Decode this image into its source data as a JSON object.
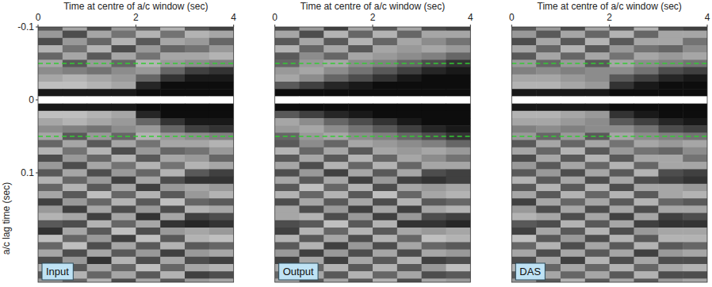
{
  "chart_data": [
    {
      "type": "heatmap",
      "title": "Input",
      "xlabel": "Time at centre of a/c window (sec)",
      "ylabel": "a/c lag time (sec)",
      "xlim": [
        0,
        4
      ],
      "ylim": [
        -0.1,
        0.25
      ],
      "xticks": [
        0,
        2,
        4
      ],
      "yticks": [
        -0.1,
        0,
        0.1
      ],
      "zlim": [
        -1,
        1
      ],
      "hlines": {
        "values": [
          -0.05,
          0.05
        ],
        "color": "#33cc33",
        "line_style": "dashed"
      },
      "x": [
        0.25,
        0.75,
        1.25,
        1.75,
        2.25,
        2.75,
        3.25,
        3.75
      ],
      "y": [
        -0.1,
        -0.09,
        -0.08,
        -0.07,
        -0.06,
        -0.05,
        -0.04,
        -0.03,
        -0.02,
        -0.01,
        0,
        0.01,
        0.02,
        0.03,
        0.04,
        0.05,
        0.06,
        0.07,
        0.08,
        0.09,
        0.1,
        0.11,
        0.12,
        0.13,
        0.14,
        0.15,
        0.16,
        0.17,
        0.18,
        0.19,
        0.2,
        0.21,
        0.22,
        0.23,
        0.24,
        0.25
      ],
      "z": [
        [
          -0.3,
          0.3,
          -0.4,
          0.2,
          -0.2,
          0.4,
          -0.3,
          -0.5
        ],
        [
          0.2,
          -0.4,
          0.3,
          -0.1,
          0.4,
          -0.1,
          0.4,
          0.3
        ],
        [
          -0.4,
          0.2,
          -0.2,
          0.4,
          -0.3,
          0.3,
          0.2,
          -0.2
        ],
        [
          0.4,
          -0.1,
          0.4,
          -0.4,
          0.2,
          -0.2,
          -0.1,
          0.2
        ],
        [
          -0.2,
          0.3,
          -0.3,
          0.3,
          -0.1,
          0.3,
          0.3,
          0.4
        ],
        [
          0.3,
          -0.3,
          0.2,
          -0.2,
          0.4,
          0.2,
          0.1,
          0.0
        ],
        [
          0.1,
          0.0,
          -0.1,
          0.1,
          0.2,
          -0.2,
          -0.5,
          -0.6
        ],
        [
          0.3,
          0.4,
          0.3,
          0.2,
          -0.2,
          -0.6,
          -0.8,
          -0.8
        ],
        [
          0.5,
          0.5,
          0.4,
          0.3,
          -0.7,
          -0.9,
          -0.9,
          -0.9
        ],
        [
          -0.8,
          -0.8,
          -0.8,
          -0.8,
          -0.9,
          -0.9,
          -0.9,
          -0.9
        ],
        [
          1,
          1,
          1,
          1,
          1,
          1,
          1,
          1
        ],
        [
          -0.8,
          -0.8,
          -0.8,
          -0.8,
          -0.9,
          -0.9,
          -0.9,
          -0.9
        ],
        [
          0.5,
          0.5,
          0.4,
          0.3,
          -0.7,
          -0.9,
          -0.9,
          -0.9
        ],
        [
          0.3,
          0.4,
          0.3,
          0.2,
          -0.2,
          -0.6,
          -0.8,
          -0.8
        ],
        [
          0.1,
          0.0,
          -0.1,
          0.1,
          0.2,
          -0.2,
          -0.5,
          -0.6
        ],
        [
          0.3,
          -0.3,
          0.2,
          -0.2,
          0.4,
          0.2,
          0.1,
          0.0
        ],
        [
          -0.2,
          0.3,
          -0.3,
          0.3,
          -0.1,
          0.3,
          0.3,
          0.4
        ],
        [
          0.4,
          -0.1,
          0.4,
          -0.4,
          0.2,
          -0.2,
          -0.1,
          0.2
        ],
        [
          -0.4,
          0.2,
          -0.2,
          0.4,
          -0.3,
          0.3,
          0.2,
          -0.2
        ],
        [
          0.2,
          -0.4,
          0.3,
          -0.1,
          0.4,
          -0.1,
          0.4,
          0.3
        ],
        [
          -0.3,
          0.3,
          -0.4,
          0.2,
          -0.2,
          0.4,
          -0.3,
          -0.5
        ],
        [
          0.4,
          -0.2,
          0.2,
          -0.5,
          0.3,
          -0.4,
          -0.6,
          -0.6
        ],
        [
          -0.2,
          0.4,
          -0.3,
          0.3,
          -0.5,
          0.2,
          0.3,
          0.2
        ],
        [
          0.3,
          -0.3,
          0.5,
          -0.2,
          0.4,
          -0.3,
          0.2,
          0.4
        ],
        [
          -0.5,
          0.2,
          -0.2,
          0.4,
          -0.3,
          0.5,
          -0.2,
          -0.3
        ],
        [
          0.2,
          -0.5,
          0.3,
          -0.4,
          0.2,
          -0.4,
          0.4,
          0.3
        ],
        [
          0.4,
          0.3,
          -0.5,
          0.3,
          -0.6,
          0.3,
          -0.5,
          -0.4
        ],
        [
          -0.3,
          -0.4,
          0.4,
          -0.2,
          0.3,
          -0.6,
          -0.7,
          -0.6
        ],
        [
          -0.6,
          0.3,
          -0.3,
          0.5,
          -0.4,
          0.2,
          0.3,
          0.2
        ],
        [
          0.5,
          -0.2,
          0.2,
          -0.5,
          0.5,
          -0.3,
          0.4,
          0.5
        ],
        [
          -0.2,
          0.5,
          -0.4,
          0.3,
          -0.3,
          0.4,
          -0.3,
          -0.2
        ],
        [
          0.3,
          -0.4,
          0.3,
          -0.3,
          0.2,
          -0.5,
          0.2,
          0.3
        ],
        [
          -0.4,
          0.2,
          -0.6,
          0.4,
          -0.4,
          0.3,
          -0.4,
          -0.5
        ],
        [
          0.4,
          -0.3,
          0.3,
          -0.2,
          0.5,
          -0.2,
          0.3,
          0.4
        ],
        [
          -0.3,
          0.4,
          -0.2,
          0.3,
          -0.3,
          0.4,
          -0.5,
          -0.4
        ],
        [
          0.2,
          -0.2,
          0.4,
          -0.4,
          0.3,
          -0.3,
          0.2,
          0.3
        ]
      ]
    },
    {
      "type": "heatmap",
      "title": "Output",
      "xlabel": "Time at centre of a/c window (sec)",
      "xlim": [
        0,
        4
      ],
      "ylim": [
        -0.1,
        0.25
      ],
      "xticks": [
        0,
        2,
        4
      ],
      "yticks": [
        -0.1,
        0,
        0.1
      ],
      "zlim": [
        -1,
        1
      ],
      "tick_labels": "x",
      "hlines": {
        "values": [
          -0.05,
          0.05
        ],
        "color": "#33cc33",
        "line_style": "dashed"
      },
      "x": [
        0.25,
        0.75,
        1.25,
        1.75,
        2.25,
        2.75,
        3.25,
        3.75
      ],
      "y": [
        -0.1,
        -0.09,
        -0.08,
        -0.07,
        -0.06,
        -0.05,
        -0.04,
        -0.03,
        -0.02,
        -0.01,
        0,
        0.01,
        0.02,
        0.03,
        0.04,
        0.05,
        0.06,
        0.07,
        0.08,
        0.09,
        0.1,
        0.11,
        0.12,
        0.13,
        0.14,
        0.15,
        0.16,
        0.17,
        0.18,
        0.19,
        0.2,
        0.21,
        0.22,
        0.23,
        0.24,
        0.25
      ],
      "z": [
        [
          -0.4,
          0.2,
          -0.5,
          0.3,
          -0.3,
          0.3,
          -0.4,
          -0.5
        ],
        [
          0.3,
          -0.4,
          0.4,
          -0.2,
          0.4,
          -0.2,
          0.3,
          0.3
        ],
        [
          -0.3,
          0.3,
          -0.3,
          0.4,
          -0.2,
          0.3,
          0.1,
          -0.1
        ],
        [
          0.4,
          -0.2,
          0.3,
          -0.3,
          0.3,
          0.2,
          0.3,
          0.2
        ],
        [
          -0.3,
          0.1,
          -0.2,
          0.3,
          0.2,
          0.1,
          0.0,
          -0.2
        ],
        [
          -0.2,
          0.2,
          0.3,
          0.1,
          0.0,
          -0.2,
          -0.4,
          -0.6
        ],
        [
          0.2,
          0.3,
          0.1,
          -0.1,
          -0.3,
          -0.5,
          -0.7,
          -0.8
        ],
        [
          0.3,
          0.1,
          -0.2,
          -0.4,
          -0.6,
          -0.8,
          -0.9,
          -0.9
        ],
        [
          -0.3,
          -0.5,
          -0.7,
          -0.8,
          -0.9,
          -0.9,
          -0.9,
          -0.9
        ],
        [
          -0.9,
          -0.9,
          -0.9,
          -0.9,
          -0.9,
          -0.9,
          -0.9,
          -0.9
        ],
        [
          1,
          1,
          1,
          1,
          1,
          1,
          1,
          1
        ],
        [
          -0.9,
          -0.9,
          -0.9,
          -0.9,
          -0.9,
          -0.9,
          -0.9,
          -0.9
        ],
        [
          -0.3,
          -0.5,
          -0.7,
          -0.8,
          -0.9,
          -0.9,
          -0.9,
          -0.9
        ],
        [
          0.3,
          0.1,
          -0.2,
          -0.4,
          -0.6,
          -0.8,
          -0.9,
          -0.9
        ],
        [
          0.2,
          0.3,
          0.1,
          -0.1,
          -0.3,
          -0.5,
          -0.7,
          -0.8
        ],
        [
          -0.2,
          0.2,
          0.3,
          0.1,
          0.0,
          -0.2,
          -0.4,
          -0.6
        ],
        [
          -0.3,
          0.1,
          -0.2,
          0.3,
          0.2,
          0.1,
          0.0,
          -0.2
        ],
        [
          0.4,
          -0.2,
          0.3,
          -0.3,
          0.3,
          0.2,
          0.3,
          0.2
        ],
        [
          -0.3,
          0.3,
          -0.3,
          0.4,
          -0.2,
          0.3,
          0.1,
          -0.1
        ],
        [
          0.3,
          -0.4,
          0.4,
          -0.2,
          0.4,
          -0.2,
          0.3,
          0.3
        ],
        [
          -0.4,
          0.2,
          -0.5,
          0.3,
          -0.3,
          0.3,
          -0.4,
          -0.5
        ],
        [
          0.3,
          -0.3,
          0.3,
          -0.5,
          0.2,
          -0.5,
          -0.6,
          -0.5
        ],
        [
          -0.3,
          0.5,
          -0.2,
          0.4,
          -0.4,
          0.3,
          0.2,
          0.3
        ],
        [
          0.4,
          -0.2,
          0.4,
          -0.3,
          0.5,
          -0.2,
          0.3,
          0.4
        ],
        [
          -0.4,
          0.3,
          -0.3,
          0.3,
          -0.4,
          0.4,
          -0.3,
          -0.2
        ],
        [
          0.3,
          -0.4,
          0.2,
          -0.5,
          0.3,
          -0.5,
          0.3,
          0.4
        ],
        [
          0.3,
          0.4,
          -0.4,
          0.2,
          -0.5,
          0.2,
          -0.4,
          -0.5
        ],
        [
          -0.4,
          -0.3,
          0.5,
          -0.3,
          0.4,
          -0.6,
          -0.6,
          -0.7
        ],
        [
          -0.5,
          0.4,
          -0.2,
          0.4,
          -0.3,
          0.3,
          0.2,
          0.3
        ],
        [
          0.4,
          -0.3,
          0.3,
          -0.4,
          0.4,
          -0.2,
          0.5,
          0.4
        ],
        [
          -0.3,
          0.4,
          -0.5,
          0.2,
          -0.4,
          0.3,
          -0.2,
          -0.3
        ],
        [
          0.2,
          -0.5,
          0.2,
          -0.4,
          0.3,
          -0.4,
          0.3,
          0.2
        ],
        [
          -0.5,
          0.3,
          -0.5,
          0.3,
          -0.3,
          0.4,
          -0.5,
          -0.4
        ],
        [
          0.3,
          -0.2,
          0.4,
          -0.3,
          0.4,
          -0.3,
          0.2,
          0.5
        ],
        [
          -0.2,
          0.3,
          -0.3,
          0.4,
          -0.2,
          0.3,
          -0.4,
          -0.3
        ],
        [
          0.3,
          -0.3,
          0.3,
          -0.3,
          0.4,
          -0.4,
          0.3,
          0.2
        ]
      ]
    },
    {
      "type": "heatmap",
      "title": "DAS",
      "xlabel": "Time at centre of a/c window (sec)",
      "xlim": [
        0,
        4
      ],
      "ylim": [
        -0.1,
        0.25
      ],
      "xticks": [
        0,
        2,
        4
      ],
      "yticks": [
        -0.1,
        0,
        0.1
      ],
      "zlim": [
        -1,
        1
      ],
      "tick_labels": "x",
      "hlines": {
        "values": [
          -0.05,
          0.05
        ],
        "color": "#33cc33",
        "line_style": "dashed"
      },
      "x": [
        0.25,
        0.75,
        1.25,
        1.75,
        2.25,
        2.75,
        3.25,
        3.75
      ],
      "y": [
        -0.1,
        -0.09,
        -0.08,
        -0.07,
        -0.06,
        -0.05,
        -0.04,
        -0.03,
        -0.02,
        -0.01,
        0,
        0.01,
        0.02,
        0.03,
        0.04,
        0.05,
        0.06,
        0.07,
        0.08,
        0.09,
        0.1,
        0.11,
        0.12,
        0.13,
        0.14,
        0.15,
        0.16,
        0.17,
        0.18,
        0.19,
        0.2,
        0.21,
        0.22,
        0.23,
        0.24,
        0.25
      ],
      "z": [
        [
          -0.3,
          0.2,
          -0.4,
          0.3,
          -0.3,
          0.4,
          -0.4,
          -0.5
        ],
        [
          0.2,
          -0.3,
          0.3,
          -0.2,
          0.4,
          -0.2,
          0.3,
          0.3
        ],
        [
          -0.4,
          0.3,
          -0.3,
          0.4,
          -0.3,
          0.3,
          0.3,
          -0.1
        ],
        [
          0.3,
          -0.2,
          0.4,
          -0.3,
          0.2,
          -0.1,
          -0.2,
          0.1
        ],
        [
          -0.3,
          0.3,
          -0.2,
          0.3,
          -0.1,
          0.3,
          0.2,
          0.3
        ],
        [
          0.2,
          -0.2,
          0.2,
          -0.3,
          0.3,
          0.1,
          0.0,
          -0.1
        ],
        [
          0.0,
          0.1,
          0.0,
          0.1,
          0.1,
          -0.1,
          -0.4,
          -0.5
        ],
        [
          0.3,
          0.3,
          0.2,
          0.1,
          -0.3,
          -0.5,
          -0.7,
          -0.8
        ],
        [
          0.4,
          0.4,
          0.3,
          0.2,
          -0.6,
          -0.8,
          -0.9,
          -0.9
        ],
        [
          -0.8,
          -0.8,
          -0.8,
          -0.8,
          -0.9,
          -0.9,
          -0.9,
          -0.9
        ],
        [
          1,
          1,
          1,
          1,
          1,
          1,
          1,
          1
        ],
        [
          -0.8,
          -0.8,
          -0.8,
          -0.8,
          -0.9,
          -0.9,
          -0.9,
          -0.9
        ],
        [
          0.4,
          0.4,
          0.3,
          0.2,
          -0.6,
          -0.8,
          -0.9,
          -0.9
        ],
        [
          0.3,
          0.3,
          0.2,
          0.1,
          -0.3,
          -0.5,
          -0.7,
          -0.8
        ],
        [
          0.0,
          0.1,
          0.0,
          0.1,
          0.1,
          -0.1,
          -0.4,
          -0.5
        ],
        [
          0.2,
          -0.2,
          0.2,
          -0.3,
          0.3,
          0.1,
          0.0,
          -0.1
        ],
        [
          -0.3,
          0.3,
          -0.2,
          0.3,
          -0.1,
          0.3,
          0.2,
          0.3
        ],
        [
          0.3,
          -0.2,
          0.4,
          -0.3,
          0.2,
          -0.1,
          -0.2,
          0.1
        ],
        [
          -0.4,
          0.3,
          -0.3,
          0.4,
          -0.3,
          0.3,
          0.3,
          -0.1
        ],
        [
          0.2,
          -0.3,
          0.3,
          -0.2,
          0.4,
          -0.2,
          0.3,
          0.3
        ],
        [
          -0.3,
          0.2,
          -0.4,
          0.3,
          -0.3,
          0.4,
          -0.4,
          -0.5
        ],
        [
          0.4,
          -0.3,
          0.3,
          -0.4,
          0.3,
          -0.4,
          -0.5,
          -0.6
        ],
        [
          -0.3,
          0.4,
          -0.3,
          0.4,
          -0.4,
          0.3,
          0.3,
          0.2
        ],
        [
          0.3,
          -0.3,
          0.4,
          -0.2,
          0.4,
          -0.3,
          0.3,
          0.4
        ],
        [
          -0.5,
          0.3,
          -0.2,
          0.3,
          -0.3,
          0.4,
          -0.2,
          -0.3
        ],
        [
          0.2,
          -0.4,
          0.3,
          -0.4,
          0.3,
          -0.4,
          0.3,
          0.3
        ],
        [
          0.4,
          0.3,
          -0.4,
          0.3,
          -0.5,
          0.3,
          -0.5,
          -0.4
        ],
        [
          -0.3,
          -0.4,
          0.4,
          -0.3,
          0.3,
          -0.5,
          -0.6,
          -0.6
        ],
        [
          -0.5,
          0.3,
          -0.3,
          0.4,
          -0.4,
          0.2,
          0.3,
          0.3
        ],
        [
          0.5,
          -0.3,
          0.2,
          -0.4,
          0.4,
          -0.3,
          0.4,
          0.4
        ],
        [
          -0.2,
          0.4,
          -0.4,
          0.3,
          -0.3,
          0.4,
          -0.3,
          -0.2
        ],
        [
          0.3,
          -0.4,
          0.3,
          -0.3,
          0.3,
          -0.5,
          0.2,
          0.3
        ],
        [
          -0.4,
          0.3,
          -0.5,
          0.4,
          -0.4,
          0.3,
          -0.4,
          -0.4
        ],
        [
          0.4,
          -0.2,
          0.3,
          -0.2,
          0.4,
          -0.2,
          0.3,
          0.4
        ],
        [
          -0.3,
          0.3,
          -0.2,
          0.3,
          -0.3,
          0.4,
          -0.4,
          -0.4
        ],
        [
          0.2,
          -0.3,
          0.4,
          -0.3,
          0.3,
          -0.3,
          0.2,
          0.3
        ]
      ]
    }
  ]
}
